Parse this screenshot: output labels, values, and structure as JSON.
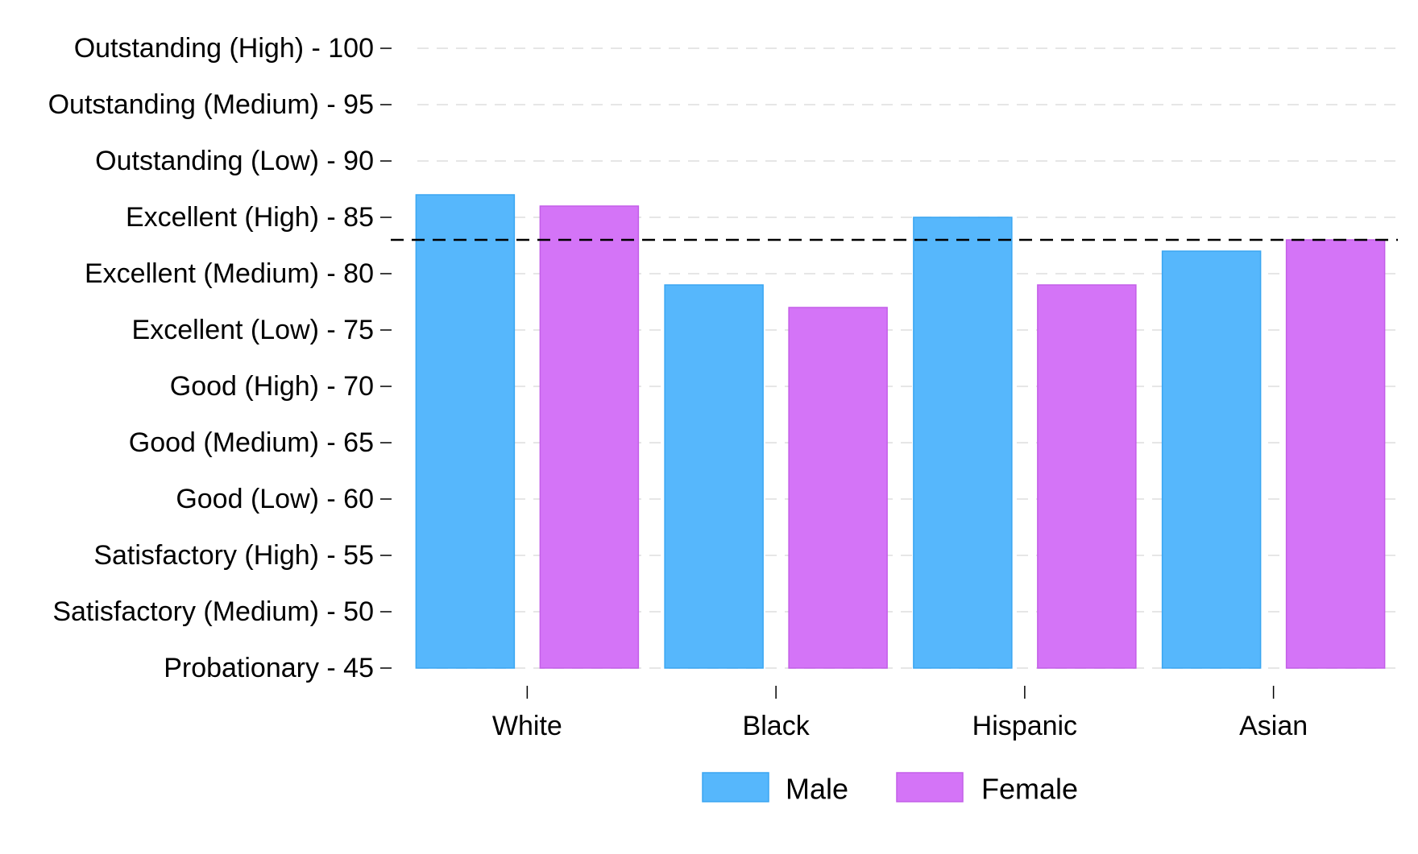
{
  "chart_data": {
    "type": "bar",
    "categories": [
      "White",
      "Black",
      "Hispanic",
      "Asian"
    ],
    "series": [
      {
        "name": "Male",
        "values": [
          87,
          79,
          85,
          82
        ],
        "color": "#56B7FC"
      },
      {
        "name": "Female",
        "values": [
          86,
          77,
          79,
          83
        ],
        "color": "#D474F7"
      }
    ],
    "ylim": [
      45,
      100
    ],
    "yticks": [
      {
        "value": 100,
        "label": "Outstanding (High) - 100"
      },
      {
        "value": 95,
        "label": "Outstanding (Medium) - 95"
      },
      {
        "value": 90,
        "label": "Outstanding (Low) - 90"
      },
      {
        "value": 85,
        "label": "Excellent (High) - 85"
      },
      {
        "value": 80,
        "label": "Excellent (Medium) - 80"
      },
      {
        "value": 75,
        "label": "Excellent (Low) - 75"
      },
      {
        "value": 70,
        "label": "Good (High) - 70"
      },
      {
        "value": 65,
        "label": "Good (Medium) - 65"
      },
      {
        "value": 60,
        "label": "Good (Low) - 60"
      },
      {
        "value": 55,
        "label": "Satisfactory (High) - 55"
      },
      {
        "value": 50,
        "label": "Satisfactory (Medium) - 50"
      },
      {
        "value": 45,
        "label": "Probationary - 45"
      }
    ],
    "reference_line": {
      "value": 83,
      "style": "dashed",
      "color": "#000000"
    },
    "grid": "horizontal-dashed",
    "legend": {
      "position": "bottom",
      "entries": [
        "Male",
        "Female"
      ]
    },
    "title": "",
    "xlabel": "",
    "ylabel": ""
  }
}
